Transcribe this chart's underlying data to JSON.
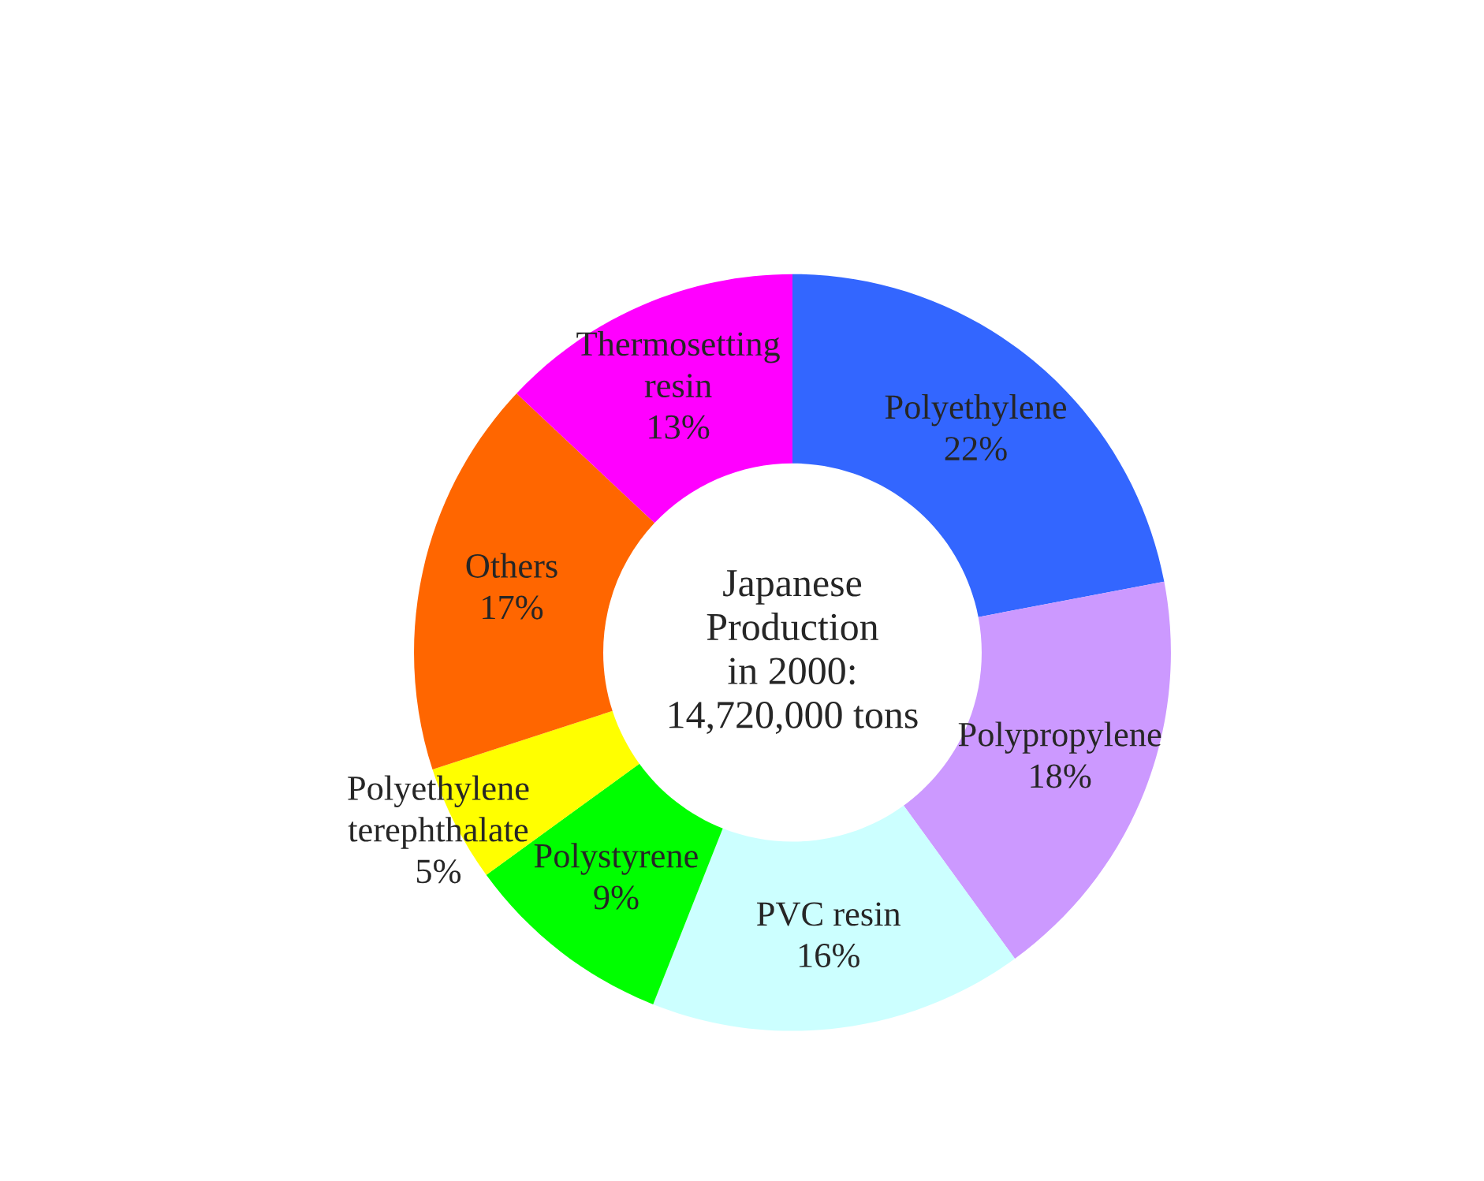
{
  "chart_data": {
    "type": "donut",
    "title": "Japanese\nProduction\nin 2000:\n14,720,000 tons",
    "categories": [
      "Polyethylene",
      "Polypropylene",
      "PVC resin",
      "Polystyrene",
      "Polyethylene\nterephthalate",
      "Others",
      "Thermosetting\nresin"
    ],
    "values": [
      22,
      18,
      16,
      9,
      5,
      17,
      13
    ],
    "colors": [
      "#3366ff",
      "#cc99ff",
      "#ccffff",
      "#00ff00",
      "#ffff00",
      "#ff6600",
      "#ff00ff"
    ],
    "value_labels": [
      "22%",
      "18%",
      "16%",
      "9%",
      "5%",
      "17%",
      "13%"
    ],
    "legend": false
  }
}
